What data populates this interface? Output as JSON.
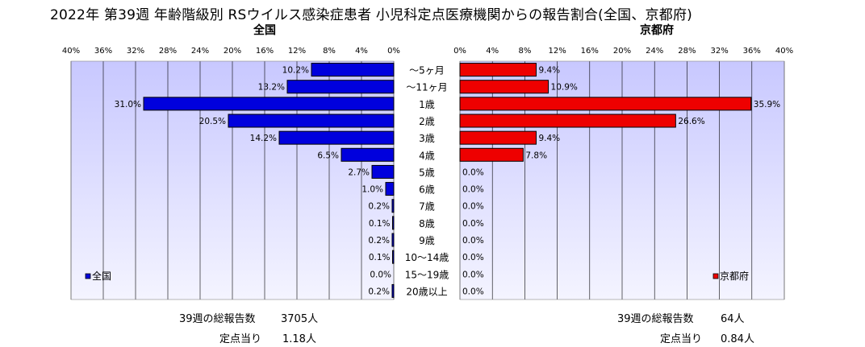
{
  "title": "2022年 第39週 年齢階級別 RSウイルス感染症患者 小児科定点医療機関からの報告割合(全国、京都府)",
  "colors": {
    "national_bar": "#0000dd",
    "kyoto_bar": "#ee0000",
    "plot_bg_top": "#c8c8ff",
    "plot_bg_bottom": "#f4f4ff",
    "grid": "#000000"
  },
  "chart_data": [
    {
      "type": "bar",
      "orientation": "horizontal",
      "direction": "right-to-left",
      "title": "全国",
      "categories": [
        "～5ヶ月",
        "～11ヶ月",
        "1歳",
        "2歳",
        "3歳",
        "4歳",
        "5歳",
        "6歳",
        "7歳",
        "8歳",
        "9歳",
        "10～14歳",
        "15～19歳",
        "20歳以上"
      ],
      "series": [
        {
          "name": "全国",
          "values": [
            10.2,
            13.2,
            31.0,
            20.5,
            14.2,
            6.5,
            2.7,
            1.0,
            0.2,
            0.1,
            0.2,
            0.1,
            0.0,
            0.2
          ],
          "labels": [
            "10.2%",
            "13.2%",
            "31.0%",
            "20.5%",
            "14.2%",
            "6.5%",
            "2.7%",
            "1.0%",
            "0.2%",
            "0.1%",
            "0.2%",
            "0.1%",
            "0.0%",
            "0.2%"
          ]
        }
      ],
      "xlim": [
        0,
        40
      ],
      "ticks": [
        "40%",
        "36%",
        "32%",
        "28%",
        "24%",
        "20%",
        "16%",
        "12%",
        "8%",
        "4%",
        "0%"
      ],
      "grid": true,
      "legend_position": "bottom-left"
    },
    {
      "type": "bar",
      "orientation": "horizontal",
      "direction": "left-to-right",
      "title": "京都府",
      "categories": [
        "～5ヶ月",
        "～11ヶ月",
        "1歳",
        "2歳",
        "3歳",
        "4歳",
        "5歳",
        "6歳",
        "7歳",
        "8歳",
        "9歳",
        "10～14歳",
        "15～19歳",
        "20歳以上"
      ],
      "series": [
        {
          "name": "京都府",
          "values": [
            9.4,
            10.9,
            35.9,
            26.6,
            9.4,
            7.8,
            0.0,
            0.0,
            0.0,
            0.0,
            0.0,
            0.0,
            0.0,
            0.0
          ],
          "labels": [
            "9.4%",
            "10.9%",
            "35.9%",
            "26.6%",
            "9.4%",
            "7.8%",
            "0.0%",
            "0.0%",
            "0.0%",
            "0.0%",
            "0.0%",
            "0.0%",
            "0.0%",
            "0.0%"
          ]
        }
      ],
      "xlim": [
        0,
        40
      ],
      "ticks": [
        "0%",
        "4%",
        "8%",
        "12%",
        "16%",
        "20%",
        "24%",
        "28%",
        "32%",
        "36%",
        "40%"
      ],
      "grid": true,
      "legend_position": "bottom-right"
    }
  ],
  "footer": {
    "national": {
      "count_label": "39週の総報告数",
      "count_value": "3705人",
      "per_label": "定点当り",
      "per_value": "1.18人"
    },
    "kyoto": {
      "count_label": "39週の総報告数",
      "count_value": "64人",
      "per_label": "定点当り",
      "per_value": "0.84人"
    }
  }
}
